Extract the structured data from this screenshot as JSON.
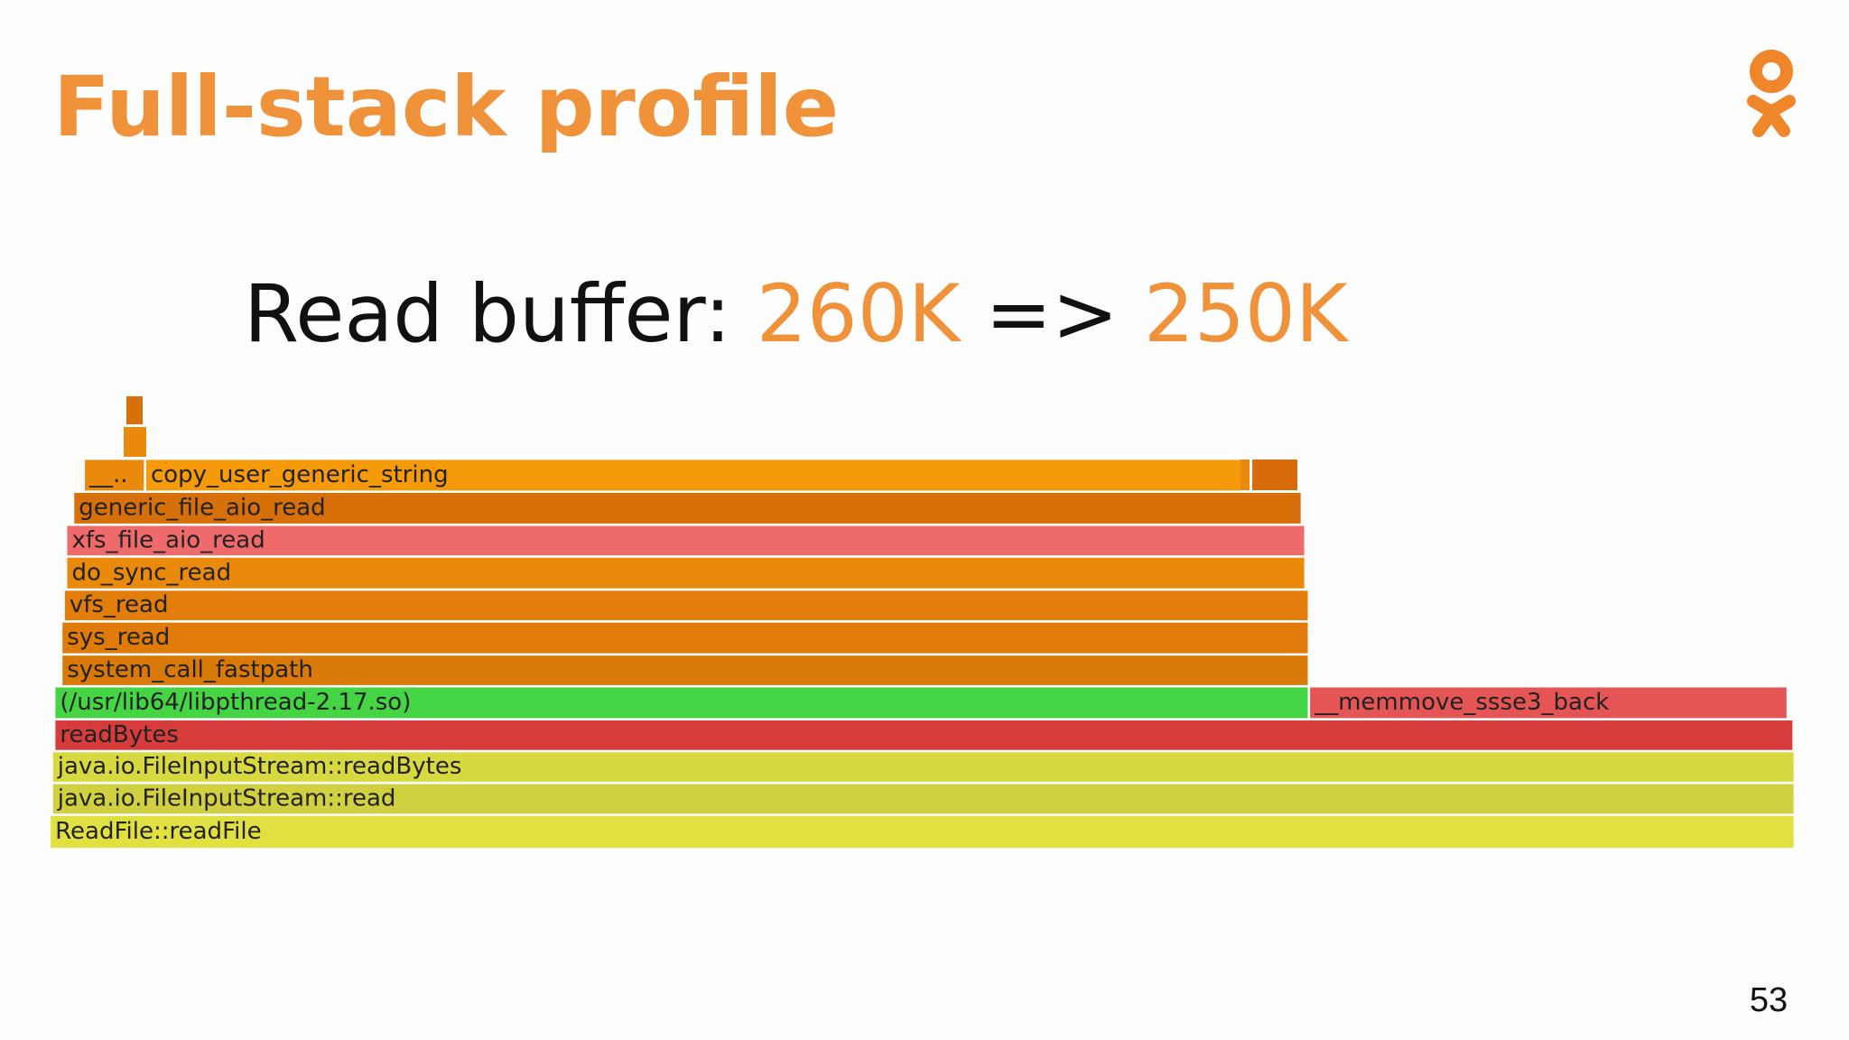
{
  "header": {
    "title": "Full-stack profile"
  },
  "subtitle": {
    "prefix": "Read buffer:",
    "from": "260K",
    "arrow": "=>",
    "to": "250K"
  },
  "flame": {
    "frames": [
      {
        "label": "__.."
      },
      {
        "label": "copy_user_generic_string"
      },
      {
        "label": "generic_file_aio_read"
      },
      {
        "label": "xfs_file_aio_read"
      },
      {
        "label": "do_sync_read"
      },
      {
        "label": "vfs_read"
      },
      {
        "label": "sys_read"
      },
      {
        "label": "system_call_fastpath"
      },
      {
        "label": "(/usr/lib64/libpthread-2.17.so)"
      },
      {
        "label": "__memmove_ssse3_back"
      },
      {
        "label": "readBytes"
      },
      {
        "label": "java.io.FileInputStream::readBytes"
      },
      {
        "label": "java.io.FileInputStream::read"
      },
      {
        "label": "ReadFile::readFile"
      }
    ]
  },
  "footer": {
    "page": "53"
  }
}
